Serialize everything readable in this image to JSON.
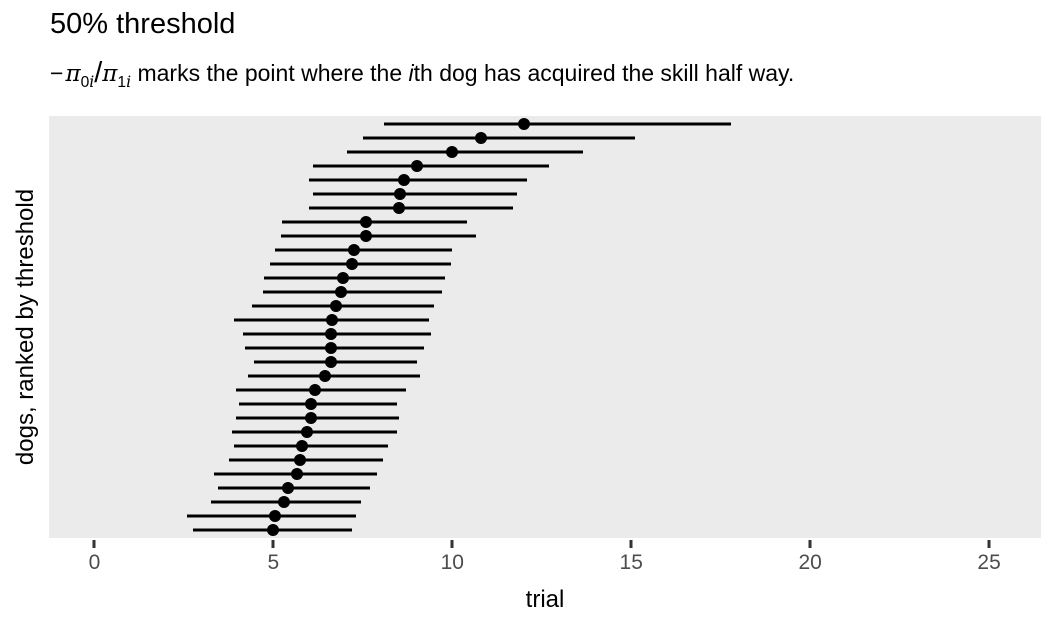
{
  "chart_data": {
    "type": "scatter",
    "variant": "dot-interval",
    "title": "50% threshold",
    "subtitle": "−π0i/π1i marks the point where the ith dog has acquired the skill half way.",
    "subtitle_parts": {
      "minus": "−",
      "pi": "π",
      "sub_zero": "0",
      "sub_one": "1",
      "sub_i": "i",
      "slash": "/",
      "text_mid": " marks the point where the ",
      "text_i": "i",
      "text_rest": "th dog has acquired the skill half way."
    },
    "xlabel": "trial",
    "ylabel": "dogs, ranked by threshold",
    "xlim": [
      -1.27,
      26.45
    ],
    "x_ticks": [
      0,
      5,
      10,
      15,
      20,
      25
    ],
    "grid": false,
    "legend": "none",
    "panel_bg": "#EBEBEB",
    "point_color": "#000000",
    "interval_color": "#000000",
    "tick_label_color": "#4D4D4D",
    "n_dogs": 30,
    "dogs": [
      {
        "est": 12.0,
        "lo": 8.1,
        "hi": 17.8
      },
      {
        "est": 10.8,
        "lo": 7.5,
        "hi": 15.1
      },
      {
        "est": 10.0,
        "lo": 7.05,
        "hi": 13.65
      },
      {
        "est": 9.0,
        "lo": 6.1,
        "hi": 12.7
      },
      {
        "est": 8.65,
        "lo": 6.0,
        "hi": 12.1
      },
      {
        "est": 8.55,
        "lo": 6.1,
        "hi": 11.8
      },
      {
        "est": 8.5,
        "lo": 6.0,
        "hi": 11.7
      },
      {
        "est": 7.6,
        "lo": 5.25,
        "hi": 10.4
      },
      {
        "est": 7.6,
        "lo": 5.2,
        "hi": 10.65
      },
      {
        "est": 7.25,
        "lo": 5.05,
        "hi": 10.0
      },
      {
        "est": 7.2,
        "lo": 4.9,
        "hi": 9.95
      },
      {
        "est": 6.95,
        "lo": 4.75,
        "hi": 9.8
      },
      {
        "est": 6.9,
        "lo": 4.7,
        "hi": 9.7
      },
      {
        "est": 6.75,
        "lo": 4.4,
        "hi": 9.5
      },
      {
        "est": 6.65,
        "lo": 3.9,
        "hi": 9.35
      },
      {
        "est": 6.6,
        "lo": 4.15,
        "hi": 9.4
      },
      {
        "est": 6.6,
        "lo": 4.2,
        "hi": 9.2
      },
      {
        "est": 6.6,
        "lo": 4.45,
        "hi": 9.0
      },
      {
        "est": 6.45,
        "lo": 4.3,
        "hi": 9.1
      },
      {
        "est": 6.15,
        "lo": 3.95,
        "hi": 8.7
      },
      {
        "est": 6.05,
        "lo": 4.05,
        "hi": 8.45
      },
      {
        "est": 6.05,
        "lo": 3.95,
        "hi": 8.5
      },
      {
        "est": 5.95,
        "lo": 3.85,
        "hi": 8.45
      },
      {
        "est": 5.8,
        "lo": 3.9,
        "hi": 8.2
      },
      {
        "est": 5.75,
        "lo": 3.75,
        "hi": 8.05
      },
      {
        "est": 5.65,
        "lo": 3.35,
        "hi": 7.9
      },
      {
        "est": 5.4,
        "lo": 3.45,
        "hi": 7.7
      },
      {
        "est": 5.3,
        "lo": 3.25,
        "hi": 7.45
      },
      {
        "est": 5.05,
        "lo": 2.6,
        "hi": 7.3
      },
      {
        "est": 5.0,
        "lo": 2.75,
        "hi": 7.2
      }
    ]
  }
}
